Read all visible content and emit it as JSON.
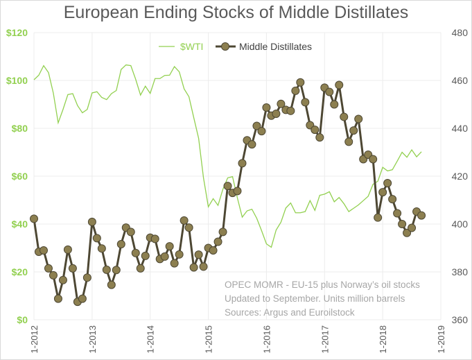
{
  "chart_data": {
    "type": "line",
    "title": "European Ending Stocks of Middle Distillates",
    "x_start": "2012-01",
    "x_end": "2018-09",
    "x_tick_labels": [
      "1-2012",
      "1-2013",
      "1-2014",
      "1-2015",
      "1-2016",
      "1-2017",
      "1-2018",
      "1-2019"
    ],
    "y_left": {
      "label": "",
      "range": [
        0,
        120
      ],
      "ticks": [
        "$0",
        "$20",
        "$40",
        "$60",
        "$80",
        "$100",
        "$120"
      ]
    },
    "y_right": {
      "label": "",
      "range": [
        360,
        480
      ],
      "ticks": [
        "360",
        "380",
        "400",
        "420",
        "440",
        "460",
        "480"
      ]
    },
    "grid": true,
    "legend_position": "top",
    "series": [
      {
        "name": "$WTI",
        "axis": "left",
        "color": "#92d050",
        "values": [
          100.3,
          102.2,
          106.2,
          103.3,
          94.7,
          82.3,
          87.9,
          94.1,
          94.5,
          89.5,
          86.5,
          87.9,
          94.8,
          95.3,
          92.9,
          92.0,
          94.5,
          95.8,
          104.6,
          106.5,
          106.2,
          100.5,
          93.9,
          97.6,
          94.6,
          100.8,
          100.8,
          102.1,
          102.2,
          105.8,
          103.6,
          96.5,
          93.2,
          84.4,
          75.8,
          59.3,
          47.2,
          50.6,
          47.8,
          54.5,
          59.3,
          59.8,
          50.9,
          42.9,
          45.5,
          46.2,
          42.4,
          37.2,
          31.7,
          30.3,
          37.5,
          40.8,
          46.7,
          48.8,
          44.7,
          44.7,
          45.2,
          49.8,
          45.7,
          52.0,
          52.5,
          53.5,
          49.3,
          51.1,
          48.5,
          45.2,
          46.6,
          48.0,
          49.8,
          51.6,
          56.6,
          57.9,
          63.7,
          62.2,
          62.7,
          66.3,
          70.0,
          67.9,
          71.0,
          68.1,
          70.2
        ]
      },
      {
        "name": "Middle Distillates",
        "axis": "right",
        "color": "#4d4733",
        "marker_color": "#8c7f50",
        "values": [
          402.2,
          388.4,
          389.0,
          381.5,
          378.6,
          368.8,
          376.6,
          389.3,
          381.5,
          367.5,
          368.8,
          377.6,
          400.9,
          394.1,
          389.8,
          380.9,
          374.6,
          380.8,
          391.6,
          398.5,
          396.7,
          387.9,
          381.5,
          386.7,
          394.3,
          393.8,
          385.4,
          386.4,
          390.7,
          383.6,
          387.3,
          401.5,
          398.5,
          381.9,
          387.2,
          382.2,
          390.0,
          389.0,
          392.6,
          396.7,
          415.9,
          413.0,
          413.8,
          425.4,
          435.0,
          433.3,
          441.0,
          438.8,
          448.7,
          445.3,
          446.1,
          450.2,
          447.7,
          447.3,
          455.7,
          459.2,
          450.9,
          441.3,
          439.4,
          436.2,
          457.0,
          455.2,
          450.0,
          458.1,
          444.8,
          434.4,
          439.1,
          443.9,
          427.1,
          429.0,
          427.1,
          402.7,
          413.3,
          417.1,
          410.4,
          404.5,
          400.0,
          396.3,
          398.4,
          405.2,
          403.6
        ]
      }
    ],
    "annotations": [
      "OPEC MOMR - EU-15 plus Norway’s oil stocks",
      "Updated to September. Units million barrels",
      "Sources: Argus and Euroilstock"
    ]
  }
}
